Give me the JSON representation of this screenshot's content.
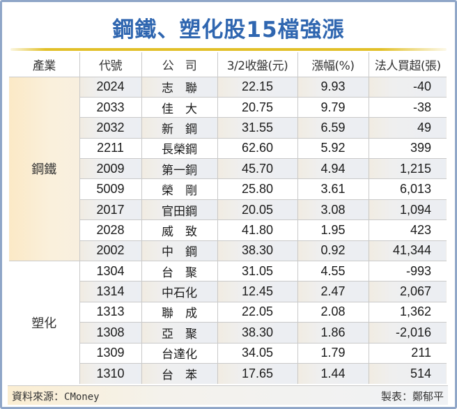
{
  "title": "鋼鐵、塑化股15檔強漲",
  "colors": {
    "title": "#2f66b0",
    "accent_line": "#e2c028",
    "frame": "#8fa6c8",
    "steel_band": "#faf0dc"
  },
  "table": {
    "headers": [
      "產業",
      "代號",
      "公　司",
      "3/2收盤(元)",
      "漲幅(%)",
      "法人買超(張)"
    ],
    "groups": [
      {
        "industry": "鋼鐵",
        "rows": [
          {
            "code": "2024",
            "company": "志　聯",
            "close": "22.15",
            "change": "9.93",
            "net_buy": "-40"
          },
          {
            "code": "2033",
            "company": "佳　大",
            "close": "20.75",
            "change": "9.79",
            "net_buy": "-38"
          },
          {
            "code": "2032",
            "company": "新　鋼",
            "close": "31.55",
            "change": "6.59",
            "net_buy": "49"
          },
          {
            "code": "2211",
            "company": "長榮鋼",
            "close": "62.60",
            "change": "5.92",
            "net_buy": "399"
          },
          {
            "code": "2009",
            "company": "第一銅",
            "close": "45.70",
            "change": "4.94",
            "net_buy": "1,215"
          },
          {
            "code": "5009",
            "company": "榮　剛",
            "close": "25.80",
            "change": "3.61",
            "net_buy": "6,013"
          },
          {
            "code": "2017",
            "company": "官田鋼",
            "close": "20.05",
            "change": "3.08",
            "net_buy": "1,094"
          },
          {
            "code": "2028",
            "company": "威　致",
            "close": "41.80",
            "change": "1.95",
            "net_buy": "423"
          },
          {
            "code": "2002",
            "company": "中　鋼",
            "close": "38.30",
            "change": "0.92",
            "net_buy": "41,344"
          }
        ]
      },
      {
        "industry": "塑化",
        "rows": [
          {
            "code": "1304",
            "company": "台　聚",
            "close": "31.05",
            "change": "4.55",
            "net_buy": "-993"
          },
          {
            "code": "1314",
            "company": "中石化",
            "close": "12.45",
            "change": "2.47",
            "net_buy": "2,067"
          },
          {
            "code": "1313",
            "company": "聯　成",
            "close": "22.05",
            "change": "2.08",
            "net_buy": "1,362"
          },
          {
            "code": "1308",
            "company": "亞　聚",
            "close": "38.30",
            "change": "1.86",
            "net_buy": "-2,016"
          },
          {
            "code": "1309",
            "company": "台達化",
            "close": "34.05",
            "change": "1.79",
            "net_buy": "211"
          },
          {
            "code": "1310",
            "company": "台　苯",
            "close": "17.65",
            "change": "1.44",
            "net_buy": "514"
          }
        ]
      }
    ]
  },
  "footer": {
    "source_label": "資料來源：",
    "source_value": "CMoney",
    "maker": "製表：鄭郁平"
  }
}
